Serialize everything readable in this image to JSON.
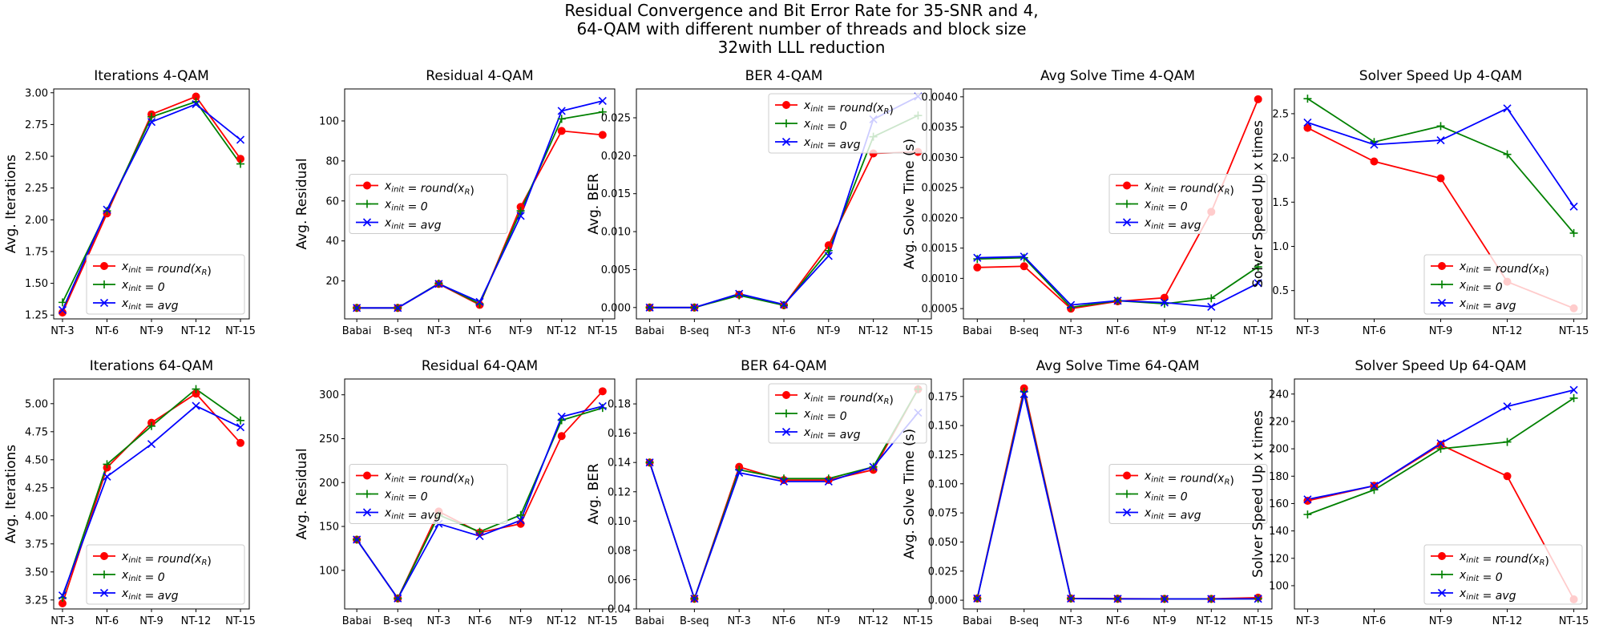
{
  "figure": {
    "title_lines": [
      "Residual Convergence and Bit Error Rate for 35-SNR and 4,",
      "64-QAM with different number of threads and block size",
      "32with LLL reduction"
    ]
  },
  "colors": {
    "round": "#ff0000",
    "zero": "#008000",
    "avg": "#0000ff"
  },
  "legend_entries": [
    {
      "key": "round",
      "marker": "circle",
      "prefix": "x",
      "sub": "init",
      "rhs_main": " = round(x",
      "rhs_sub": "R",
      "rhs_end": ")"
    },
    {
      "key": "zero",
      "marker": "plus",
      "prefix": "x",
      "sub": "init",
      "rhs_main": " = 0",
      "rhs_sub": "",
      "rhs_end": ""
    },
    {
      "key": "avg",
      "marker": "x",
      "prefix": "x",
      "sub": "init",
      "rhs_main": " = avg",
      "rhs_sub": "",
      "rhs_end": ""
    }
  ],
  "chart_data": [
    {
      "id": "iter4",
      "type": "line",
      "title": "Iterations 4-QAM",
      "ylabel": "Avg. Iterations",
      "xlabel": "",
      "categories": [
        "NT-3",
        "NT-6",
        "NT-9",
        "NT-12",
        "NT-15"
      ],
      "ylim": [
        1.22,
        3.03
      ],
      "yticks": [
        1.25,
        1.5,
        1.75,
        2.0,
        2.25,
        2.5,
        2.75,
        3.0
      ],
      "ytick_labels": [
        "1.25",
        "1.50",
        "1.75",
        "2.00",
        "2.25",
        "2.50",
        "2.75",
        "3.00"
      ],
      "legend": "lower-right",
      "series": [
        {
          "key": "round",
          "values": [
            1.27,
            2.05,
            2.83,
            2.97,
            2.48
          ]
        },
        {
          "key": "zero",
          "values": [
            1.35,
            2.07,
            2.81,
            2.93,
            2.44
          ]
        },
        {
          "key": "avg",
          "values": [
            1.29,
            2.08,
            2.77,
            2.91,
            2.63
          ]
        }
      ]
    },
    {
      "id": "res4",
      "type": "line",
      "title": "Residual 4-QAM",
      "ylabel": "Avg. Residual",
      "xlabel": "",
      "categories": [
        "Babai",
        "B-seq",
        "NT-3",
        "NT-6",
        "NT-9",
        "NT-12",
        "NT-15"
      ],
      "ylim": [
        1,
        116
      ],
      "yticks": [
        20,
        40,
        60,
        80,
        100
      ],
      "ytick_labels": [
        "20",
        "40",
        "60",
        "80",
        "100"
      ],
      "legend": "center-left",
      "series": [
        {
          "key": "round",
          "values": [
            6.5,
            6.5,
            18.5,
            8.0,
            57,
            95,
            93
          ]
        },
        {
          "key": "zero",
          "values": [
            6.5,
            6.5,
            18.7,
            8.5,
            55,
            101,
            104.5
          ]
        },
        {
          "key": "avg",
          "values": [
            6.5,
            6.5,
            18.5,
            9.5,
            52.5,
            105,
            110
          ]
        }
      ]
    },
    {
      "id": "ber4",
      "type": "line",
      "title": "BER 4-QAM",
      "ylabel": "Avg. BER",
      "xlabel": "",
      "categories": [
        "Babai",
        "B-seq",
        "NT-3",
        "NT-6",
        "NT-9",
        "NT-12",
        "NT-15"
      ],
      "ylim": [
        -0.0015,
        0.0288
      ],
      "yticks": [
        0,
        0.005,
        0.01,
        0.015,
        0.02,
        0.025
      ],
      "ytick_labels": [
        "0.000",
        "0.005",
        "0.010",
        "0.015",
        "0.020",
        "0.025"
      ],
      "legend": "upper-right",
      "series": [
        {
          "key": "round",
          "values": [
            0.0,
            0.0,
            0.0017,
            0.0003,
            0.0082,
            0.0203,
            0.0205
          ]
        },
        {
          "key": "zero",
          "values": [
            0.0,
            0.0,
            0.0016,
            0.0003,
            0.0075,
            0.0225,
            0.0253
          ]
        },
        {
          "key": "avg",
          "values": [
            0.0,
            0.0,
            0.0018,
            0.0004,
            0.0068,
            0.0248,
            0.0278
          ]
        }
      ]
    },
    {
      "id": "time4",
      "type": "line",
      "title": "Avg Solve Time 4-QAM",
      "ylabel": "Avg. Solve Time (s)",
      "xlabel": "",
      "categories": [
        "Babai",
        "B-seq",
        "NT-3",
        "NT-6",
        "NT-9",
        "NT-12",
        "NT-15"
      ],
      "ylim": [
        0.00033,
        0.00413
      ],
      "yticks": [
        0.0005,
        0.001,
        0.0015,
        0.002,
        0.0025,
        0.003,
        0.0035,
        0.004
      ],
      "ytick_labels": [
        "0.0005",
        "0.0010",
        "0.0015",
        "0.0020",
        "0.0025",
        "0.0030",
        "0.0035",
        "0.0040"
      ],
      "legend": "center-right",
      "series": [
        {
          "key": "round",
          "values": [
            0.00118,
            0.0012,
            0.0005,
            0.00062,
            0.00068,
            0.0021,
            0.00396
          ]
        },
        {
          "key": "zero",
          "values": [
            0.00132,
            0.00134,
            0.00052,
            0.00063,
            0.00058,
            0.00067,
            0.00119
          ]
        },
        {
          "key": "avg",
          "values": [
            0.00134,
            0.00136,
            0.00056,
            0.00063,
            0.0006,
            0.00053,
            0.00092
          ]
        }
      ]
    },
    {
      "id": "speed4",
      "type": "line",
      "title": "Solver Speed Up 4-QAM",
      "ylabel": "Solver Speed Up x times",
      "xlabel": "",
      "categories": [
        "NT-3",
        "NT-6",
        "NT-9",
        "NT-12",
        "NT-15"
      ],
      "ylim": [
        0.18,
        2.78
      ],
      "yticks": [
        0.5,
        1.0,
        1.5,
        2.0,
        2.5
      ],
      "ytick_labels": [
        "0.5",
        "1.0",
        "1.5",
        "2.0",
        "2.5"
      ],
      "legend": "lower-right",
      "series": [
        {
          "key": "round",
          "values": [
            2.34,
            1.96,
            1.77,
            0.6,
            0.3
          ]
        },
        {
          "key": "zero",
          "values": [
            2.67,
            2.18,
            2.36,
            2.04,
            1.15
          ]
        },
        {
          "key": "avg",
          "values": [
            2.4,
            2.15,
            2.2,
            2.56,
            1.45
          ]
        }
      ]
    },
    {
      "id": "iter64",
      "type": "line",
      "title": "Iterations 64-QAM",
      "ylabel": "Avg. Iterations",
      "xlabel": "",
      "categories": [
        "NT-3",
        "NT-6",
        "NT-9",
        "NT-12",
        "NT-15"
      ],
      "ylim": [
        3.17,
        5.22
      ],
      "yticks": [
        3.25,
        3.5,
        3.75,
        4.0,
        4.25,
        4.5,
        4.75,
        5.0
      ],
      "ytick_labels": [
        "3.25",
        "3.50",
        "3.75",
        "4.00",
        "4.25",
        "4.50",
        "4.75",
        "5.00"
      ],
      "legend": "lower-right",
      "series": [
        {
          "key": "round",
          "values": [
            3.22,
            4.43,
            4.83,
            5.09,
            4.65
          ]
        },
        {
          "key": "zero",
          "values": [
            3.27,
            4.46,
            4.8,
            5.13,
            4.85
          ]
        },
        {
          "key": "avg",
          "values": [
            3.29,
            4.35,
            4.64,
            4.98,
            4.79
          ]
        }
      ]
    },
    {
      "id": "res64",
      "type": "line",
      "title": "Residual 64-QAM",
      "ylabel": "Avg. Residual",
      "xlabel": "",
      "categories": [
        "Babai",
        "B-seq",
        "NT-3",
        "NT-6",
        "NT-9",
        "NT-12",
        "NT-15"
      ],
      "ylim": [
        56,
        318
      ],
      "yticks": [
        100,
        150,
        200,
        250,
        300
      ],
      "ytick_labels": [
        "100",
        "150",
        "200",
        "250",
        "300"
      ],
      "legend": "center-left",
      "series": [
        {
          "key": "round",
          "values": [
            135,
            68,
            167,
            143,
            153,
            253,
            304
          ]
        },
        {
          "key": "zero",
          "values": [
            135,
            68,
            163,
            144,
            163,
            271,
            285
          ]
        },
        {
          "key": "avg",
          "values": [
            135,
            68,
            153,
            139,
            157,
            275,
            287
          ]
        }
      ]
    },
    {
      "id": "ber64",
      "type": "line",
      "title": "BER 64-QAM",
      "ylabel": "Avg. BER",
      "xlabel": "",
      "categories": [
        "Babai",
        "B-seq",
        "NT-3",
        "NT-6",
        "NT-9",
        "NT-12",
        "NT-15"
      ],
      "ylim": [
        0.04,
        0.197
      ],
      "yticks": [
        0.04,
        0.06,
        0.08,
        0.1,
        0.12,
        0.14,
        0.16,
        0.18
      ],
      "ytick_labels": [
        "0.04",
        "0.06",
        "0.08",
        "0.10",
        "0.12",
        "0.14",
        "0.16",
        "0.18"
      ],
      "legend": "upper-right",
      "series": [
        {
          "key": "round",
          "values": [
            0.14,
            0.047,
            0.137,
            0.128,
            0.128,
            0.135,
            0.19
          ]
        },
        {
          "key": "zero",
          "values": [
            0.14,
            0.047,
            0.135,
            0.129,
            0.129,
            0.137,
            0.19
          ]
        },
        {
          "key": "avg",
          "values": [
            0.14,
            0.047,
            0.133,
            0.127,
            0.127,
            0.137,
            0.174
          ]
        }
      ]
    },
    {
      "id": "time64",
      "type": "line",
      "title": "Avg Solve Time 64-QAM",
      "ylabel": "Avg. Solve Time (s)",
      "xlabel": "",
      "categories": [
        "Babai",
        "B-seq",
        "NT-3",
        "NT-6",
        "NT-9",
        "NT-12",
        "NT-15"
      ],
      "ylim": [
        -0.0075,
        0.19
      ],
      "yticks": [
        0,
        0.025,
        0.05,
        0.075,
        0.1,
        0.125,
        0.15,
        0.175
      ],
      "ytick_labels": [
        "0.000",
        "0.025",
        "0.050",
        "0.075",
        "0.100",
        "0.125",
        "0.150",
        "0.175"
      ],
      "legend": "center-right",
      "series": [
        {
          "key": "round",
          "values": [
            0.0015,
            0.182,
            0.0015,
            0.0013,
            0.0012,
            0.0012,
            0.0022
          ]
        },
        {
          "key": "zero",
          "values": [
            0.0015,
            0.179,
            0.0014,
            0.0012,
            0.0011,
            0.0011,
            0.0012
          ]
        },
        {
          "key": "avg",
          "values": [
            0.0015,
            0.177,
            0.0014,
            0.0012,
            0.0011,
            0.0011,
            0.0012
          ]
        }
      ]
    },
    {
      "id": "speed64",
      "type": "line",
      "title": "Solver Speed Up 64-QAM",
      "ylabel": "Solver Speed Up x times",
      "xlabel": "",
      "categories": [
        "NT-3",
        "NT-6",
        "NT-9",
        "NT-12",
        "NT-15"
      ],
      "ylim": [
        83,
        251
      ],
      "yticks": [
        100,
        120,
        140,
        160,
        180,
        200,
        220,
        240
      ],
      "ytick_labels": [
        "100",
        "120",
        "140",
        "160",
        "180",
        "200",
        "220",
        "240"
      ],
      "legend": "lower-right",
      "series": [
        {
          "key": "round",
          "values": [
            162,
            173,
            203,
            180,
            90
          ]
        },
        {
          "key": "zero",
          "values": [
            152,
            170,
            200,
            205,
            237
          ]
        },
        {
          "key": "avg",
          "values": [
            163,
            173,
            204,
            231,
            243
          ]
        }
      ]
    }
  ]
}
